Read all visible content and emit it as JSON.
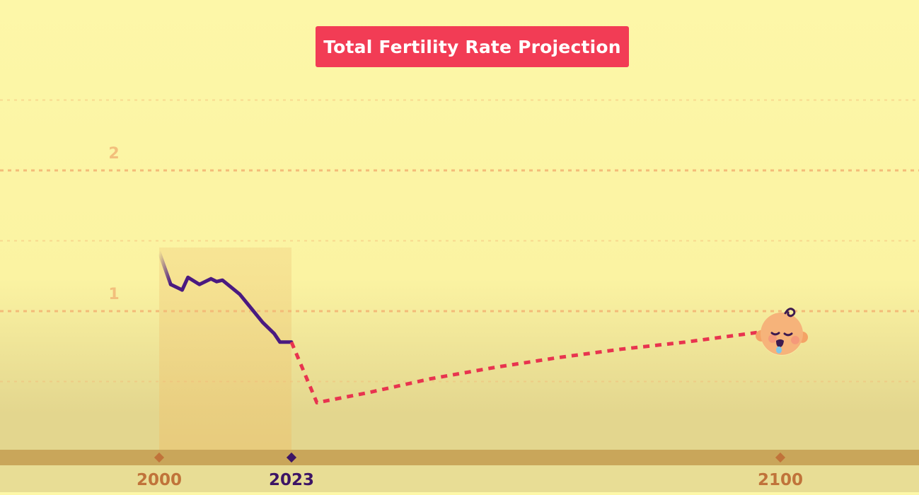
{
  "chart_data": {
    "type": "line",
    "title": "Total Fertility Rate Projection",
    "xlabel": "",
    "ylabel": "",
    "x_ticks": [
      "2000",
      "2023",
      "2100"
    ],
    "y_ticks": [
      "1",
      "2"
    ],
    "xlim": [
      1998,
      2100
    ],
    "ylim": [
      0.0,
      2.5
    ],
    "grid": true,
    "series": [
      {
        "style": "solid",
        "color": "#4a1a80",
        "x": [
          2000,
          2002,
          2004,
          2005,
          2007,
          2009,
          2010,
          2011,
          2014,
          2016,
          2018,
          2020,
          2021,
          2022,
          2023
        ],
        "y": [
          1.42,
          1.19,
          1.15,
          1.24,
          1.19,
          1.23,
          1.21,
          1.22,
          1.12,
          1.02,
          0.92,
          0.84,
          0.78,
          0.78,
          0.78
        ]
      },
      {
        "style": "dashed",
        "color": "#e8344f",
        "x": [
          2023,
          2027,
          2035,
          2045,
          2055,
          2065,
          2075,
          2085,
          2095,
          2100
        ],
        "y": [
          0.78,
          0.35,
          0.42,
          0.52,
          0.6,
          0.67,
          0.73,
          0.78,
          0.84,
          0.87
        ]
      }
    ],
    "highlight_region": {
      "x": [
        2000,
        2023
      ]
    }
  },
  "colors": {
    "background": "#fdf7a8",
    "title_bg": "#f23c55",
    "grid": "#f2b877",
    "axis_band": "#c9a65a",
    "year_default": "#c0733a",
    "year_highlight": "#3d1465"
  },
  "icons": {
    "end_marker": "sleeping-baby-icon"
  }
}
